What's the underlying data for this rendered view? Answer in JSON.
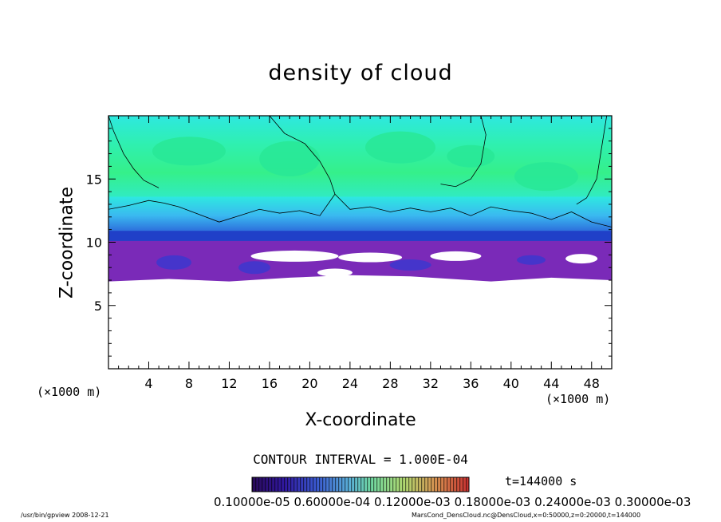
{
  "chart_data": {
    "type": "heatmap",
    "title": "density of cloud",
    "xlabel": "X-coordinate",
    "ylabel": "Z-coordinate",
    "x_unit": "(×1000 m)",
    "z_unit": "(×1000 m)",
    "xlim": [
      0,
      50
    ],
    "ylim": [
      0,
      20
    ],
    "x_ticks": [
      "4",
      "8",
      "12",
      "16",
      "20",
      "24",
      "28",
      "32",
      "36",
      "40",
      "44",
      "48"
    ],
    "y_ticks": [
      "5",
      "10",
      "15"
    ],
    "contour_interval": "CONTOUR INTERVAL = 1.000E-04",
    "time_label": "t=144000 s",
    "colorbar_labels": "0.10000e-05 0.60000e-04 0.12000e-03 0.18000e-03 0.24000e-03 0.30000e-03",
    "colorbar_colors": [
      "#1e0a55",
      "#3a1a99",
      "#3d5bd6",
      "#5aa0e6",
      "#6fe0c8",
      "#8ef07a",
      "#c8e060",
      "#d9a050",
      "#d96040",
      "#c02020"
    ],
    "cloud_field": {
      "colors": {
        "upper": "#28e896",
        "mid": "#2ee8e0",
        "lower_mid": "#3a9ef0",
        "base": "#2040c8",
        "dense": "#7a2ab8",
        "core": "#3838d0"
      },
      "cloud_top_km": 20,
      "cloud_base_km": 6.8
    }
  },
  "footer": {
    "program": "/usr/bin/gpview   2008-12-21",
    "source": "MarsCond_DensCloud.nc@DensCloud,x=0:50000,z=0:20000,t=144000"
  }
}
